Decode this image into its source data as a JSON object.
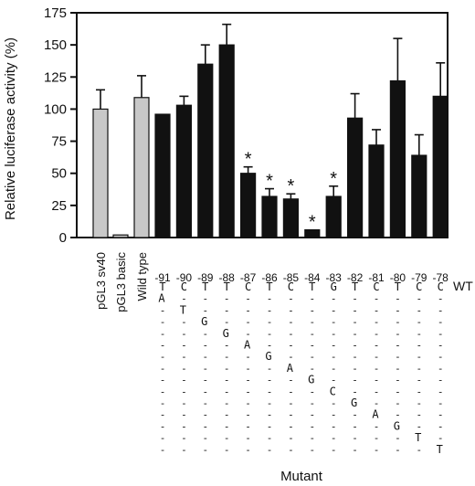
{
  "chart_data": {
    "type": "bar",
    "ylabel": "Relative luciferase activity (%)",
    "xlabel": "Mutant",
    "ylim": [
      0,
      175
    ],
    "yticks": [
      0,
      25,
      50,
      75,
      100,
      125,
      150,
      175
    ],
    "grid": false,
    "bar_colors": {
      "control": "#c8c8c8",
      "mutant": "#111111"
    },
    "categories": [
      "pGL3 sv40",
      "pGL3 basic",
      "Wild type",
      "-91",
      "-90",
      "-89",
      "-88",
      "-87",
      "-86",
      "-85",
      "-84",
      "-83",
      "-82",
      "-81",
      "-80",
      "-79",
      "-78"
    ],
    "kinds": [
      "control",
      "control",
      "control",
      "mutant",
      "mutant",
      "mutant",
      "mutant",
      "mutant",
      "mutant",
      "mutant",
      "mutant",
      "mutant",
      "mutant",
      "mutant",
      "mutant",
      "mutant",
      "mutant"
    ],
    "values": [
      100,
      2,
      109,
      96,
      103,
      135,
      150,
      50,
      32,
      30,
      6,
      32,
      93,
      72,
      122,
      64,
      110
    ],
    "errors": [
      15,
      0,
      17,
      0,
      7,
      15,
      16,
      5,
      6,
      4,
      0,
      8,
      19,
      12,
      33,
      16,
      26
    ],
    "significant": [
      false,
      false,
      false,
      false,
      false,
      false,
      false,
      true,
      true,
      true,
      true,
      true,
      false,
      false,
      false,
      false,
      false
    ],
    "significance_marker": "*"
  },
  "sequence": {
    "wt_label": "WT",
    "wild_type_bases": [
      "T",
      "C",
      "T",
      "T",
      "C",
      "T",
      "C",
      "T",
      "G",
      "T",
      "C",
      "T",
      "C",
      "C"
    ],
    "placeholder": "-",
    "mutant_bases": [
      "A",
      "T",
      "G",
      "G",
      "A",
      "G",
      "A",
      "G",
      "C",
      "G",
      "A",
      "G",
      "T",
      "T"
    ]
  }
}
